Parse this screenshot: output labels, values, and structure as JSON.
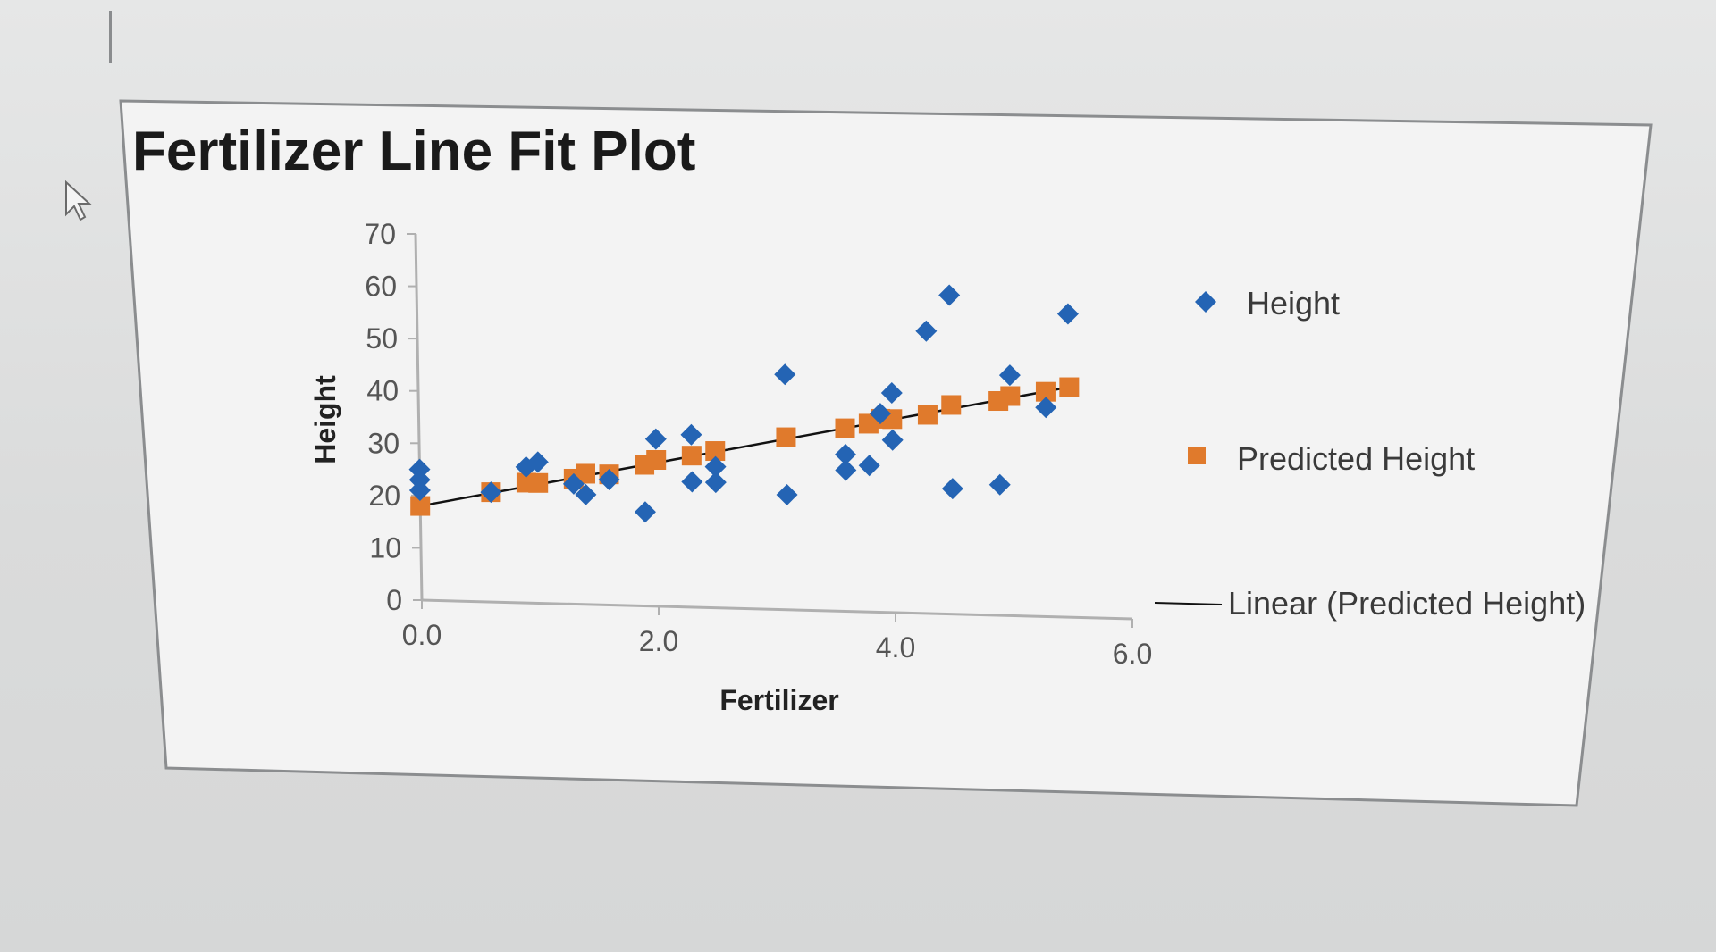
{
  "chart_data": {
    "type": "scatter",
    "title": "Fertilizer Line Fit  Plot",
    "xlabel": "Fertilizer",
    "ylabel": "Height",
    "xlim": [
      0,
      6
    ],
    "ylim": [
      0,
      70
    ],
    "x_ticks": [
      "0.0",
      "2.0",
      "4.0",
      "6.0"
    ],
    "y_ticks": [
      "0",
      "10",
      "20",
      "30",
      "40",
      "50",
      "60",
      "70"
    ],
    "grid": false,
    "legend_position": "right",
    "series": [
      {
        "name": "Height",
        "marker": "diamond",
        "color": "#2464b4",
        "points": [
          [
            0.0,
            25
          ],
          [
            0.0,
            23
          ],
          [
            0.0,
            21
          ],
          [
            0.6,
            21
          ],
          [
            0.9,
            26
          ],
          [
            1.0,
            27
          ],
          [
            1.3,
            23
          ],
          [
            1.4,
            21
          ],
          [
            1.6,
            24
          ],
          [
            1.9,
            18
          ],
          [
            2.0,
            32
          ],
          [
            2.3,
            33
          ],
          [
            2.3,
            24
          ],
          [
            2.5,
            27
          ],
          [
            2.5,
            24
          ],
          [
            3.1,
            45
          ],
          [
            3.1,
            22
          ],
          [
            3.6,
            30
          ],
          [
            3.6,
            27
          ],
          [
            3.8,
            28
          ],
          [
            3.9,
            38
          ],
          [
            4.0,
            42
          ],
          [
            4.0,
            33
          ],
          [
            4.3,
            54
          ],
          [
            4.5,
            61
          ],
          [
            4.5,
            24
          ],
          [
            4.9,
            25
          ],
          [
            5.0,
            46
          ],
          [
            5.3,
            40
          ],
          [
            5.5,
            58
          ]
        ]
      },
      {
        "name": "Predicted Height",
        "marker": "square",
        "color": "#e07a2c",
        "points": [
          [
            0.0,
            18
          ],
          [
            0.6,
            21
          ],
          [
            0.9,
            23
          ],
          [
            1.0,
            23
          ],
          [
            1.3,
            24
          ],
          [
            1.4,
            25
          ],
          [
            1.6,
            25
          ],
          [
            1.9,
            27
          ],
          [
            2.0,
            28
          ],
          [
            2.3,
            29
          ],
          [
            2.5,
            30
          ],
          [
            3.1,
            33
          ],
          [
            3.6,
            35
          ],
          [
            3.8,
            36
          ],
          [
            3.9,
            37
          ],
          [
            4.0,
            37
          ],
          [
            4.3,
            38
          ],
          [
            4.5,
            40
          ],
          [
            4.9,
            41
          ],
          [
            5.0,
            42
          ],
          [
            5.3,
            43
          ],
          [
            5.5,
            44
          ]
        ]
      }
    ],
    "trendline": {
      "name": "Linear (Predicted Height)",
      "color": "#111111",
      "from": [
        0.0,
        18
      ],
      "to": [
        5.5,
        44
      ]
    }
  }
}
